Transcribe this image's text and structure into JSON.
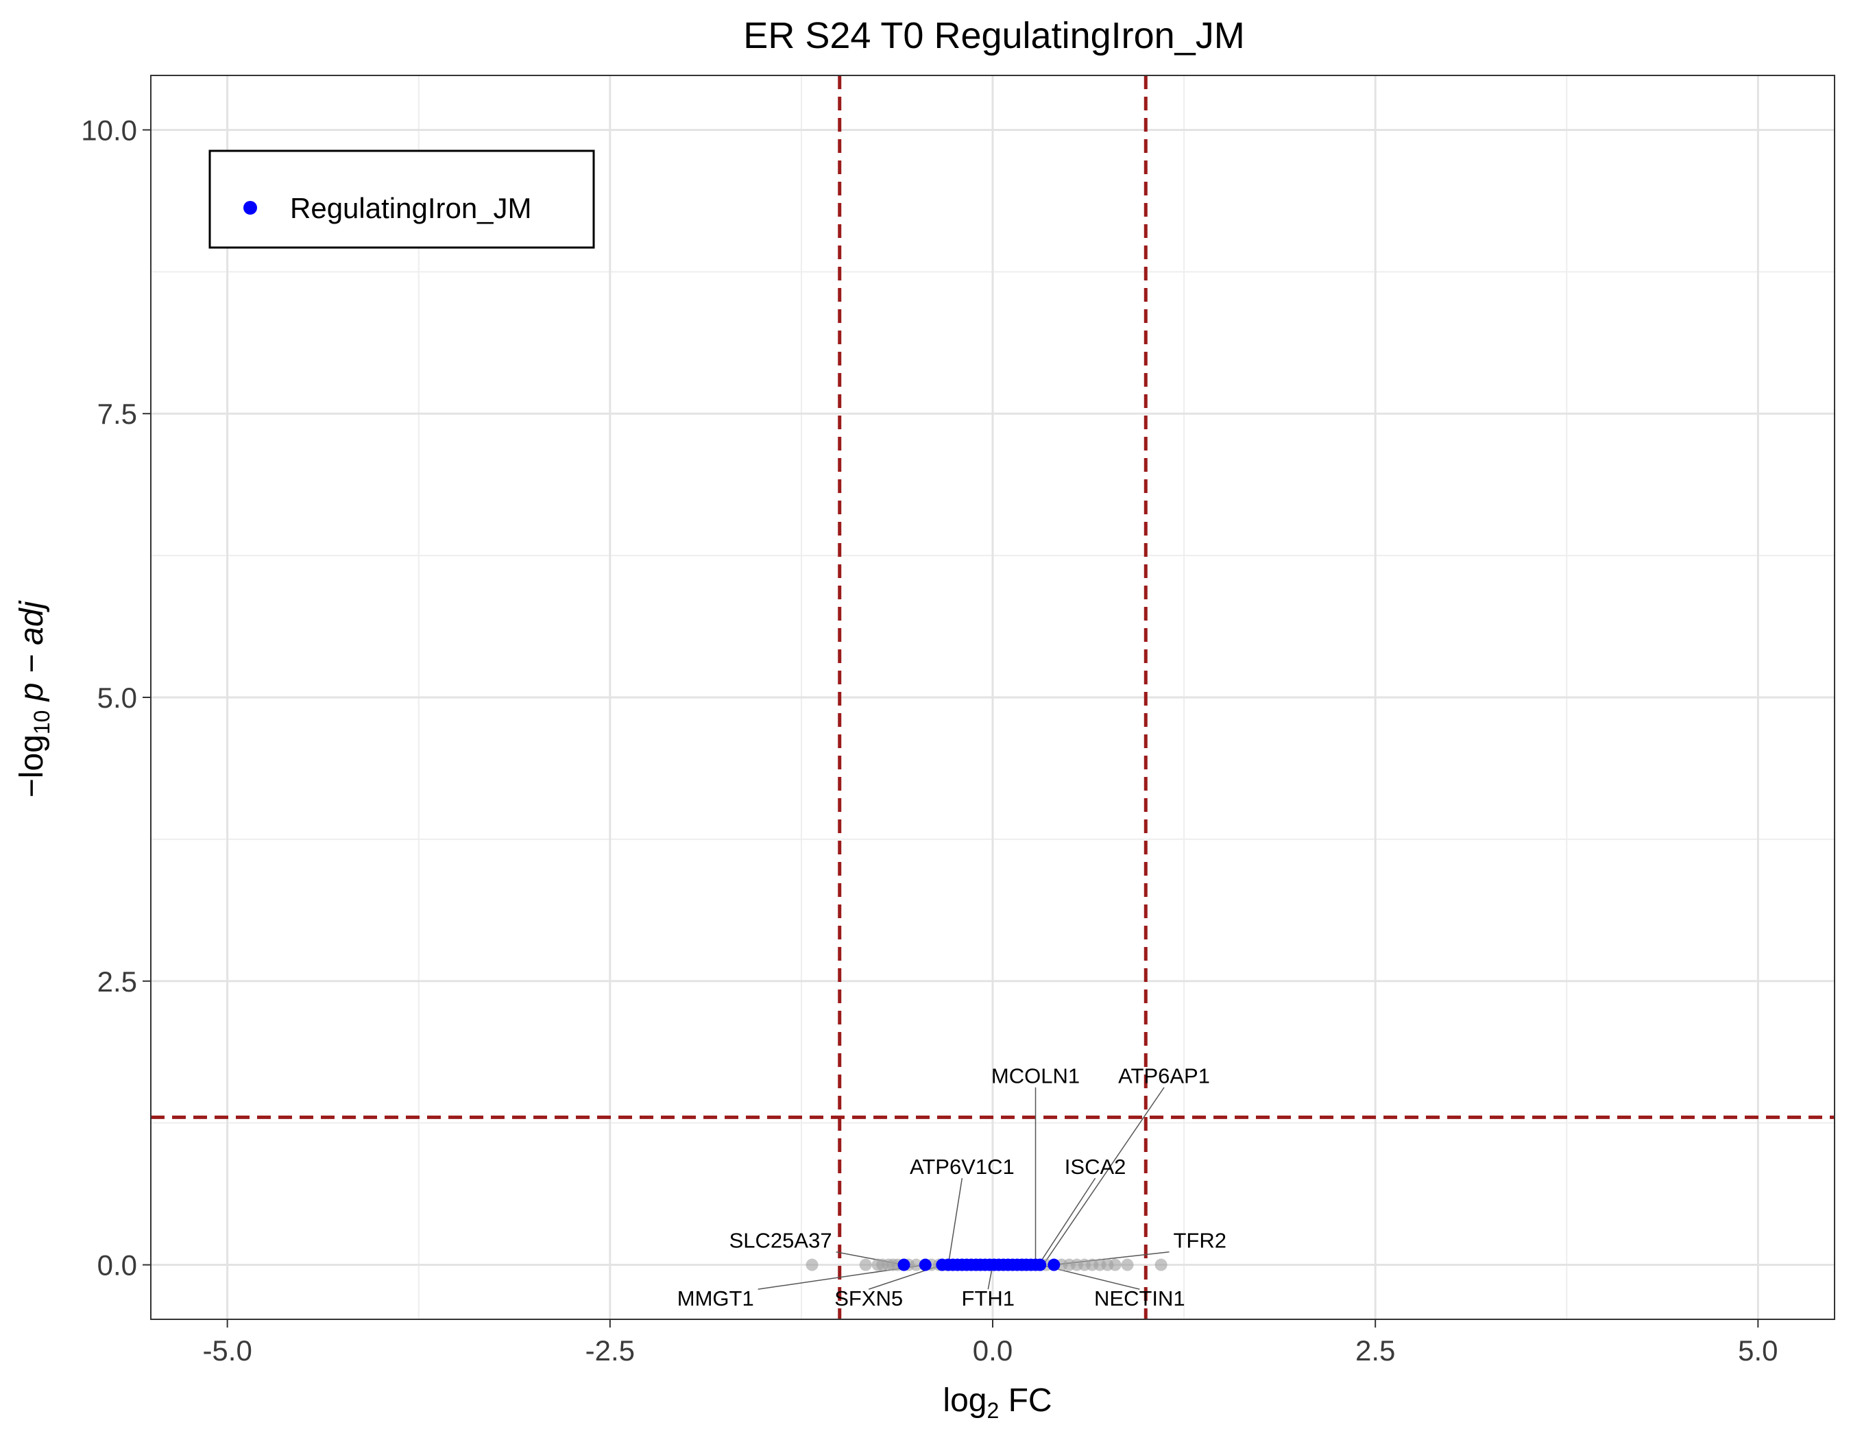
{
  "chart_data": {
    "type": "scatter",
    "title": "ER S24 T0 RegulatingIron_JM",
    "xlabel": {
      "prefix": "log",
      "sub": "2",
      "suffix": " FC"
    },
    "ylabel": {
      "prefix": "−log",
      "sub": "10",
      "suffix": " p − adj"
    },
    "xlim": [
      -5.5,
      5.5
    ],
    "ylim": [
      -0.48,
      10.48
    ],
    "x_ticks": [
      -5.0,
      -2.5,
      0.0,
      2.5,
      5.0
    ],
    "x_tick_labels": [
      "-5.0",
      "-2.5",
      "0.0",
      "2.5",
      "5.0"
    ],
    "y_ticks": [
      0.0,
      2.5,
      5.0,
      7.5,
      10.0
    ],
    "y_tick_labels": [
      "0.0",
      "2.5",
      "5.0",
      "7.5",
      "10.0"
    ],
    "grid": true,
    "fc_thresholds": [
      -1,
      1
    ],
    "p_threshold": 1.3,
    "threshold_color": "#9b1b1b",
    "legend": {
      "position": "top-left",
      "entries": [
        {
          "name": "RegulatingIron_JM",
          "color": "#0000ff"
        }
      ]
    },
    "series": [
      {
        "name": "background",
        "color": "#9e9e9e",
        "points": [
          {
            "x": -1.18,
            "y": 0.0
          },
          {
            "x": -0.83,
            "y": 0.0
          },
          {
            "x": -0.75,
            "y": 0.0
          },
          {
            "x": -0.72,
            "y": 0.0
          },
          {
            "x": -0.68,
            "y": 0.0
          },
          {
            "x": -0.65,
            "y": 0.0
          },
          {
            "x": -0.62,
            "y": 0.0
          },
          {
            "x": -0.55,
            "y": 0.0
          },
          {
            "x": -0.5,
            "y": 0.0
          },
          {
            "x": -0.4,
            "y": 0.0
          },
          {
            "x": -0.35,
            "y": 0.0
          },
          {
            "x": -0.3,
            "y": 0.0
          },
          {
            "x": -0.2,
            "y": 0.0
          },
          {
            "x": -0.1,
            "y": 0.0
          },
          {
            "x": 0.0,
            "y": 0.0
          },
          {
            "x": 0.1,
            "y": 0.0
          },
          {
            "x": 0.2,
            "y": 0.0
          },
          {
            "x": 0.3,
            "y": 0.0
          },
          {
            "x": 0.35,
            "y": 0.0
          },
          {
            "x": 0.45,
            "y": 0.0
          },
          {
            "x": 0.5,
            "y": 0.0
          },
          {
            "x": 0.55,
            "y": 0.0
          },
          {
            "x": 0.6,
            "y": 0.0
          },
          {
            "x": 0.65,
            "y": 0.0
          },
          {
            "x": 0.7,
            "y": 0.0
          },
          {
            "x": 0.75,
            "y": 0.0
          },
          {
            "x": 0.8,
            "y": 0.0
          },
          {
            "x": 0.88,
            "y": 0.0
          },
          {
            "x": 1.1,
            "y": 0.0
          }
        ]
      },
      {
        "name": "RegulatingIron_JM",
        "color": "#0000ff",
        "points": [
          {
            "x": -0.58,
            "y": 0.0
          },
          {
            "x": -0.44,
            "y": 0.0
          },
          {
            "x": -0.33,
            "y": 0.0
          },
          {
            "x": -0.29,
            "y": 0.0
          },
          {
            "x": -0.26,
            "y": 0.0
          },
          {
            "x": -0.23,
            "y": 0.0
          },
          {
            "x": -0.2,
            "y": 0.0
          },
          {
            "x": -0.17,
            "y": 0.0
          },
          {
            "x": -0.14,
            "y": 0.0
          },
          {
            "x": -0.11,
            "y": 0.0
          },
          {
            "x": -0.08,
            "y": 0.0
          },
          {
            "x": -0.05,
            "y": 0.0
          },
          {
            "x": -0.02,
            "y": 0.0
          },
          {
            "x": 0.01,
            "y": 0.0
          },
          {
            "x": 0.04,
            "y": 0.0
          },
          {
            "x": 0.07,
            "y": 0.0
          },
          {
            "x": 0.1,
            "y": 0.0
          },
          {
            "x": 0.13,
            "y": 0.0
          },
          {
            "x": 0.16,
            "y": 0.0
          },
          {
            "x": 0.19,
            "y": 0.0
          },
          {
            "x": 0.22,
            "y": 0.0
          },
          {
            "x": 0.25,
            "y": 0.0
          },
          {
            "x": 0.28,
            "y": 0.0
          },
          {
            "x": 0.31,
            "y": 0.0
          },
          {
            "x": 0.4,
            "y": 0.0
          }
        ]
      }
    ],
    "annotations": [
      {
        "text": "SLC25A37",
        "x": -0.58,
        "y": 0.0,
        "label_x": -1.05,
        "label_y": 0.15,
        "anchor": "end"
      },
      {
        "text": "ATP6V1C1",
        "x": -0.29,
        "y": 0.0,
        "label_x": -0.2,
        "label_y": 0.8,
        "anchor": "middle"
      },
      {
        "text": "MCOLN1",
        "x": 0.28,
        "y": 0.0,
        "label_x": 0.28,
        "label_y": 1.6,
        "anchor": "middle"
      },
      {
        "text": "ATP6AP1",
        "x": 0.33,
        "y": 0.0,
        "label_x": 1.12,
        "label_y": 1.6,
        "anchor": "middle"
      },
      {
        "text": "ISCA2",
        "x": 0.3,
        "y": 0.0,
        "label_x": 0.67,
        "label_y": 0.8,
        "anchor": "middle"
      },
      {
        "text": "TFR2",
        "x": 0.4,
        "y": 0.0,
        "label_x": 1.18,
        "label_y": 0.15,
        "anchor": "start"
      },
      {
        "text": "MMGT1",
        "x": -0.44,
        "y": 0.0,
        "label_x": -1.56,
        "label_y": -0.36,
        "anchor": "end"
      },
      {
        "text": "SFXN5",
        "x": -0.33,
        "y": 0.0,
        "label_x": -0.81,
        "label_y": -0.36,
        "anchor": "middle"
      },
      {
        "text": "FTH1",
        "x": 0.0,
        "y": 0.0,
        "label_x": -0.03,
        "label_y": -0.36,
        "anchor": "middle"
      },
      {
        "text": "NECTIN1",
        "x": 0.31,
        "y": 0.0,
        "label_x": 0.96,
        "label_y": -0.36,
        "anchor": "middle"
      }
    ]
  }
}
